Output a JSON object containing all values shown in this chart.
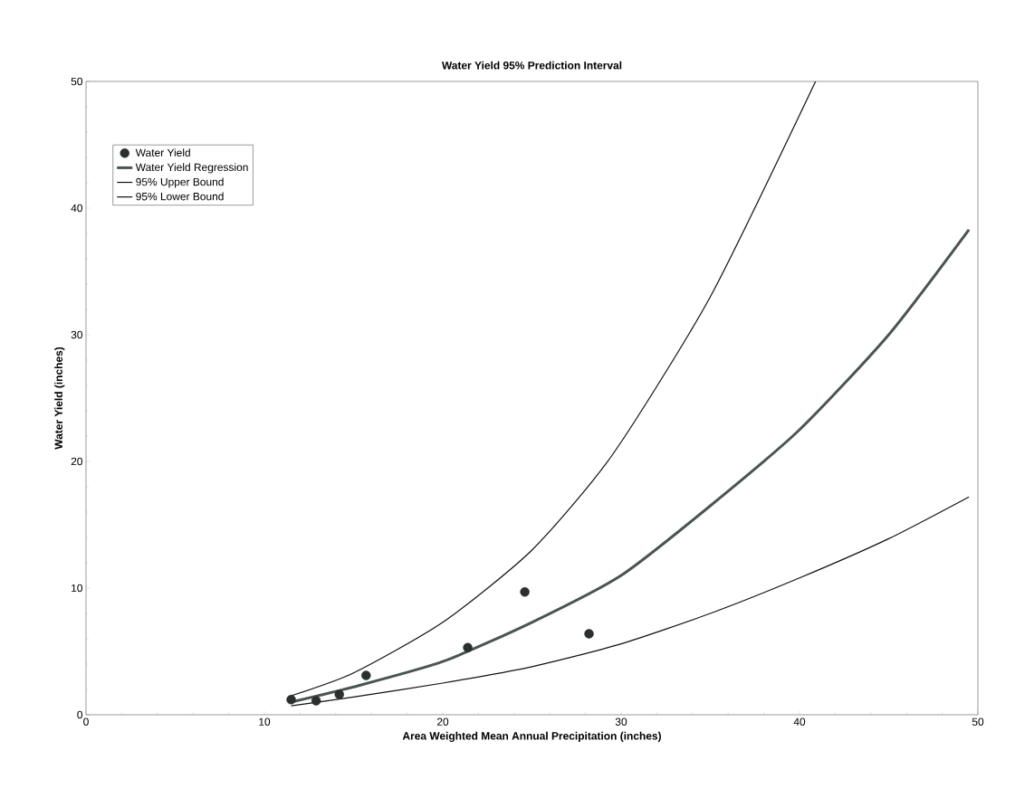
{
  "chart_data": {
    "type": "line",
    "title": "Water Yield 95% Prediction Interval",
    "xlabel": "Area Weighted Mean Annual Precipitation (inches)",
    "ylabel": "Water Yield (inches)",
    "xlim": [
      0,
      50
    ],
    "ylim": [
      0,
      50
    ],
    "xticks": [
      0,
      10,
      20,
      30,
      40,
      50
    ],
    "yticks": [
      0,
      10,
      20,
      30,
      40,
      50
    ],
    "grid": false,
    "legend": "top left",
    "series": [
      {
        "name": "Water Yield",
        "type": "scatter",
        "marker": "circle",
        "color": "#2b2f2e",
        "x": [
          11.5,
          12.9,
          14.2,
          15.7,
          21.4,
          24.6,
          28.2
        ],
        "values": [
          1.2,
          1.1,
          1.6,
          3.1,
          5.3,
          9.7,
          6.4
        ]
      },
      {
        "name": "Water Yield Regression",
        "color": "#4a5550",
        "x": [
          11.5,
          15,
          20,
          25,
          30,
          35,
          40,
          45,
          49.5
        ],
        "values": [
          1.0,
          2.2,
          4.2,
          7.3,
          11,
          16.5,
          22.5,
          30,
          38.3
        ]
      },
      {
        "name": "95% Upper Bound",
        "color": "#111111",
        "x": [
          11.5,
          15,
          20,
          25,
          29.5,
          35,
          40.9
        ],
        "values": [
          1.5,
          3.3,
          7.3,
          13,
          20.5,
          33,
          50
        ]
      },
      {
        "name": "95% Lower Bound",
        "color": "#111111",
        "x": [
          11.5,
          15,
          20,
          25,
          30,
          35,
          40,
          45,
          49.5
        ],
        "values": [
          0.7,
          1.4,
          2.5,
          3.8,
          5.6,
          8,
          10.8,
          13.9,
          17.2
        ]
      }
    ]
  }
}
